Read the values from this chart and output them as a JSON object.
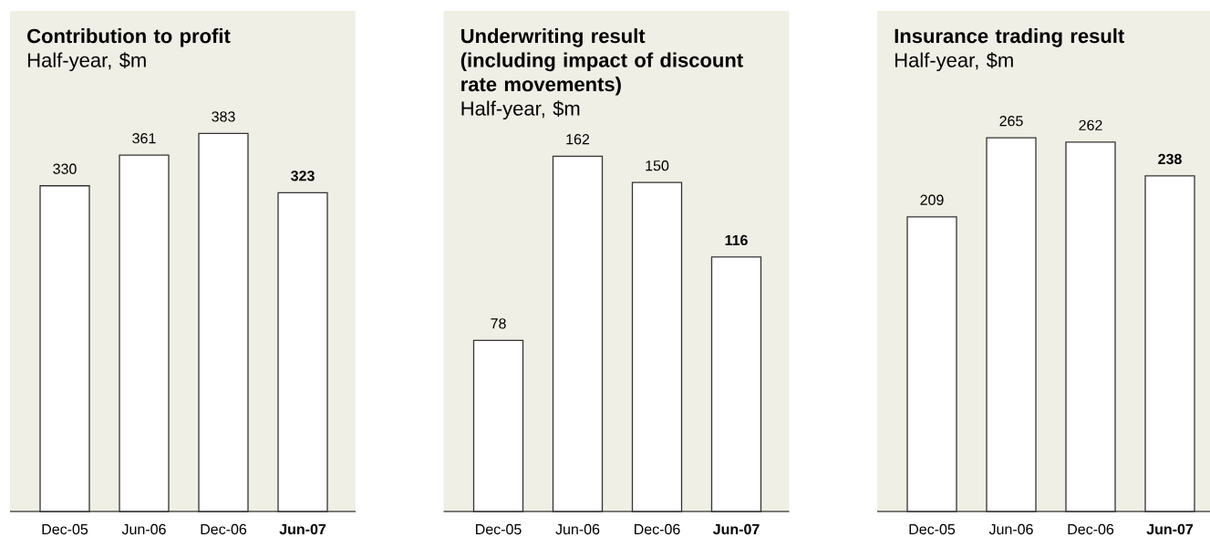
{
  "chart_data": [
    {
      "type": "bar",
      "title": "Contribution to profit",
      "subtitle": "Half-year, $m",
      "categories": [
        "Dec-05",
        "Jun-06",
        "Dec-06",
        "Jun-07"
      ],
      "values": [
        330,
        361,
        383,
        323
      ],
      "color": "#ffffff",
      "data_labels": true
    },
    {
      "type": "bar",
      "title": "Underwriting result (including impact of discount rate movements)",
      "subtitle": "Half-year, $m",
      "categories": [
        "Dec-05",
        "Jun-06",
        "Dec-06",
        "Jun-07"
      ],
      "values": [
        78,
        162,
        150,
        116
      ],
      "color": "#ffffff",
      "data_labels": true
    },
    {
      "type": "bar",
      "title": "Insurance trading result",
      "subtitle": "Half-year, $m",
      "categories": [
        "Dec-05",
        "Jun-06",
        "Dec-06",
        "Jun-07"
      ],
      "values": [
        209,
        265,
        262,
        238
      ],
      "color": "#ffffff",
      "data_labels": true
    }
  ]
}
